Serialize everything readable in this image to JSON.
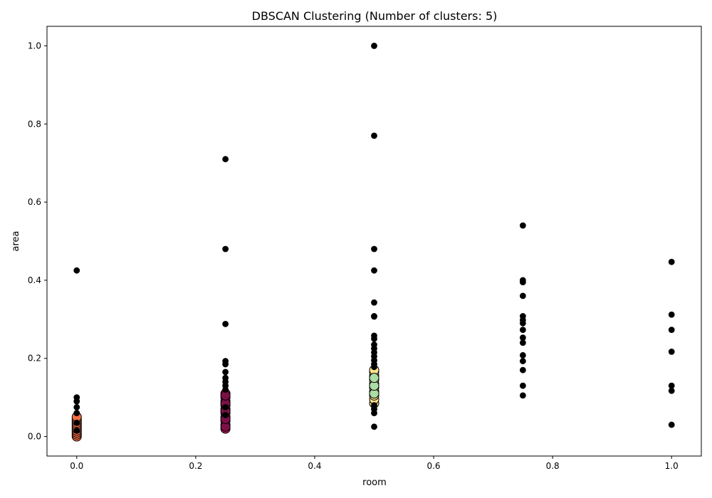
{
  "chart_data": {
    "type": "scatter",
    "title": "DBSCAN Clustering (Number of clusters: 5)",
    "xlabel": "room",
    "ylabel": "area",
    "xlim": [
      -0.05,
      1.05
    ],
    "ylim": [
      -0.05,
      1.05
    ],
    "x_ticks": [
      0.0,
      0.2,
      0.4,
      0.6,
      0.8,
      1.0
    ],
    "y_ticks": [
      0.0,
      0.2,
      0.4,
      0.6,
      0.8,
      1.0
    ],
    "x_tick_labels": [
      "0.0",
      "0.2",
      "0.4",
      "0.6",
      "0.8",
      "1.0"
    ],
    "y_tick_labels": [
      "0.0",
      "0.2",
      "0.4",
      "0.6",
      "0.8",
      "1.0"
    ],
    "grid": false,
    "legend": "none",
    "series": [
      {
        "color": "#f46d43",
        "marker": "core",
        "points": [
          [
            0,
            0.0
          ],
          [
            0,
            0.005
          ],
          [
            0,
            0.01
          ],
          [
            0,
            0.015
          ],
          [
            0,
            0.02
          ],
          [
            0,
            0.025
          ],
          [
            0,
            0.03
          ],
          [
            0,
            0.035
          ],
          [
            0,
            0.04
          ],
          [
            0,
            0.045
          ],
          [
            0,
            0.05
          ]
        ]
      },
      {
        "color": "#c2185b",
        "marker": "core",
        "points": [
          [
            0.25,
            0.02
          ],
          [
            0.25,
            0.03
          ],
          [
            0.25,
            0.04
          ],
          [
            0.25,
            0.05
          ],
          [
            0.25,
            0.06
          ],
          [
            0.25,
            0.07
          ],
          [
            0.25,
            0.08
          ],
          [
            0.25,
            0.09
          ],
          [
            0.25,
            0.1
          ],
          [
            0.25,
            0.11
          ]
        ]
      },
      {
        "color": "#7b1048",
        "marker": "core",
        "points": [
          [
            0.25,
            0.025
          ],
          [
            0.25,
            0.045
          ],
          [
            0.25,
            0.065
          ],
          [
            0.25,
            0.085
          ],
          [
            0.25,
            0.105
          ]
        ]
      },
      {
        "color": "#fee08b",
        "marker": "core",
        "points": [
          [
            0.5,
            0.085
          ],
          [
            0.5,
            0.095
          ],
          [
            0.5,
            0.105
          ],
          [
            0.5,
            0.115
          ],
          [
            0.5,
            0.125
          ],
          [
            0.5,
            0.135
          ],
          [
            0.5,
            0.145
          ],
          [
            0.5,
            0.155
          ],
          [
            0.5,
            0.165
          ],
          [
            0.5,
            0.17
          ]
        ]
      },
      {
        "color": "#abdda4",
        "marker": "core",
        "points": [
          [
            0.5,
            0.11
          ],
          [
            0.5,
            0.13
          ],
          [
            0.5,
            0.15
          ]
        ]
      },
      {
        "color": "#000000",
        "marker": "noise",
        "points": [
          [
            0,
            0.1
          ],
          [
            0,
            0.09
          ],
          [
            0,
            0.075
          ],
          [
            0,
            0.06
          ],
          [
            0,
            0.035
          ],
          [
            0,
            0.015
          ],
          [
            0,
            0.425
          ],
          [
            0.25,
            0.71
          ],
          [
            0.25,
            0.48
          ],
          [
            0.25,
            0.288
          ],
          [
            0.25,
            0.193
          ],
          [
            0.25,
            0.185
          ],
          [
            0.25,
            0.165
          ],
          [
            0.25,
            0.15
          ],
          [
            0.25,
            0.14
          ],
          [
            0.25,
            0.13
          ],
          [
            0.25,
            0.12
          ],
          [
            0.25,
            0.075
          ],
          [
            0.25,
            0.055
          ],
          [
            0.5,
            1.0
          ],
          [
            0.5,
            0.77
          ],
          [
            0.5,
            0.48
          ],
          [
            0.5,
            0.425
          ],
          [
            0.5,
            0.343
          ],
          [
            0.5,
            0.308
          ],
          [
            0.5,
            0.307
          ],
          [
            0.5,
            0.258
          ],
          [
            0.5,
            0.25
          ],
          [
            0.5,
            0.235
          ],
          [
            0.5,
            0.225
          ],
          [
            0.5,
            0.215
          ],
          [
            0.5,
            0.205
          ],
          [
            0.5,
            0.195
          ],
          [
            0.5,
            0.185
          ],
          [
            0.5,
            0.178
          ],
          [
            0.5,
            0.08
          ],
          [
            0.5,
            0.07
          ],
          [
            0.5,
            0.06
          ],
          [
            0.5,
            0.025
          ],
          [
            0.75,
            0.54
          ],
          [
            0.75,
            0.4
          ],
          [
            0.75,
            0.395
          ],
          [
            0.75,
            0.36
          ],
          [
            0.75,
            0.308
          ],
          [
            0.75,
            0.298
          ],
          [
            0.75,
            0.29
          ],
          [
            0.75,
            0.273
          ],
          [
            0.75,
            0.253
          ],
          [
            0.75,
            0.24
          ],
          [
            0.75,
            0.208
          ],
          [
            0.75,
            0.193
          ],
          [
            0.75,
            0.17
          ],
          [
            0.75,
            0.13
          ],
          [
            0.75,
            0.105
          ],
          [
            1.0,
            0.447
          ],
          [
            1.0,
            0.312
          ],
          [
            1.0,
            0.273
          ],
          [
            1.0,
            0.217
          ],
          [
            1.0,
            0.13
          ],
          [
            1.0,
            0.117
          ],
          [
            1.0,
            0.03
          ]
        ]
      }
    ]
  }
}
